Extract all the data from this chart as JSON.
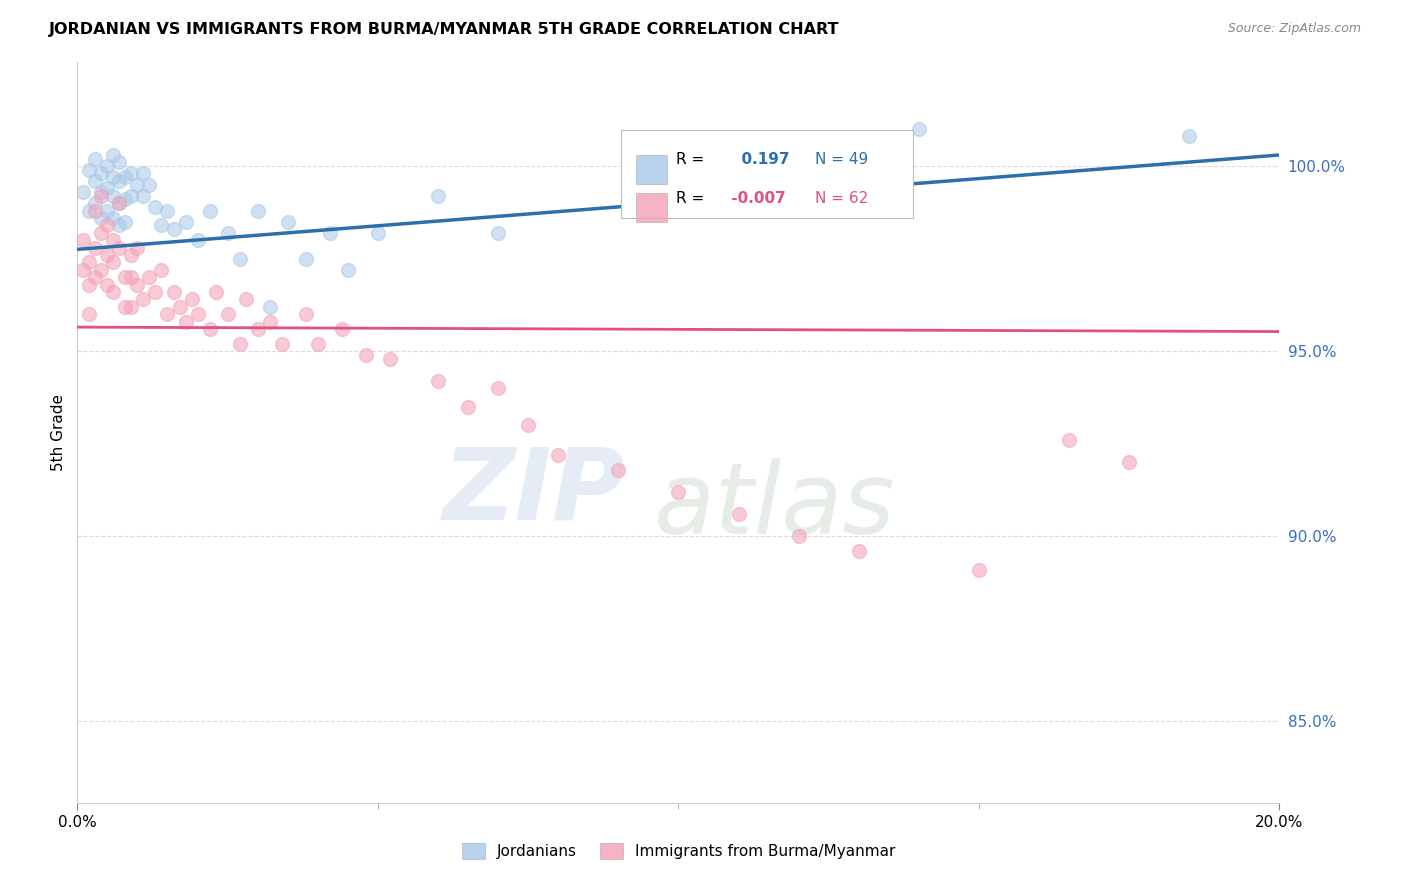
{
  "title": "JORDANIAN VS IMMIGRANTS FROM BURMA/MYANMAR 5TH GRADE CORRELATION CHART",
  "source": "Source: ZipAtlas.com",
  "ylabel": "5th Grade",
  "xlim": [
    0.0,
    0.2
  ],
  "ylim": [
    0.828,
    1.028
  ],
  "ytick_values": [
    0.85,
    0.9,
    0.95,
    1.0
  ],
  "xtick_major": [
    0.0,
    0.2
  ],
  "xtick_minor": [
    0.05,
    0.1,
    0.15
  ],
  "legend_blue_label": "Jordanians",
  "legend_pink_label": "Immigrants from Burma/Myanmar",
  "R_blue": 0.197,
  "N_blue": 49,
  "R_pink": -0.007,
  "N_pink": 62,
  "blue_color": "#a8c8e8",
  "pink_color": "#f4a0b5",
  "trendline_blue_color": "#2c6fac",
  "trendline_pink_color": "#e05080",
  "blue_trendline_x": [
    0.0,
    0.2
  ],
  "blue_trendline_y": [
    0.9775,
    1.003
  ],
  "pink_trendline_x": [
    0.0,
    0.2
  ],
  "pink_trendline_y": [
    0.9565,
    0.9553
  ],
  "blue_scatter_x": [
    0.001,
    0.002,
    0.002,
    0.003,
    0.003,
    0.003,
    0.004,
    0.004,
    0.004,
    0.005,
    0.005,
    0.005,
    0.006,
    0.006,
    0.006,
    0.006,
    0.007,
    0.007,
    0.007,
    0.007,
    0.008,
    0.008,
    0.008,
    0.009,
    0.009,
    0.01,
    0.011,
    0.011,
    0.012,
    0.013,
    0.014,
    0.015,
    0.016,
    0.018,
    0.02,
    0.022,
    0.025,
    0.027,
    0.03,
    0.032,
    0.035,
    0.038,
    0.042,
    0.045,
    0.05,
    0.06,
    0.07,
    0.14,
    0.185
  ],
  "blue_scatter_y": [
    0.993,
    0.999,
    0.988,
    1.002,
    0.996,
    0.99,
    0.998,
    0.993,
    0.986,
    1.0,
    0.994,
    0.988,
    1.003,
    0.997,
    0.992,
    0.986,
    1.001,
    0.996,
    0.99,
    0.984,
    0.997,
    0.991,
    0.985,
    0.998,
    0.992,
    0.995,
    0.998,
    0.992,
    0.995,
    0.989,
    0.984,
    0.988,
    0.983,
    0.985,
    0.98,
    0.988,
    0.982,
    0.975,
    0.988,
    0.962,
    0.985,
    0.975,
    0.982,
    0.972,
    0.982,
    0.992,
    0.982,
    1.01,
    1.008
  ],
  "pink_scatter_x": [
    0.001,
    0.001,
    0.002,
    0.002,
    0.002,
    0.003,
    0.003,
    0.003,
    0.004,
    0.004,
    0.004,
    0.005,
    0.005,
    0.005,
    0.006,
    0.006,
    0.006,
    0.007,
    0.007,
    0.008,
    0.008,
    0.009,
    0.009,
    0.009,
    0.01,
    0.01,
    0.011,
    0.012,
    0.013,
    0.014,
    0.015,
    0.016,
    0.017,
    0.018,
    0.019,
    0.02,
    0.022,
    0.023,
    0.025,
    0.027,
    0.028,
    0.03,
    0.032,
    0.034,
    0.038,
    0.04,
    0.044,
    0.048,
    0.052,
    0.06,
    0.065,
    0.07,
    0.075,
    0.08,
    0.09,
    0.1,
    0.11,
    0.12,
    0.13,
    0.15,
    0.165,
    0.175
  ],
  "pink_scatter_y": [
    0.98,
    0.972,
    0.974,
    0.968,
    0.96,
    0.988,
    0.978,
    0.97,
    0.992,
    0.982,
    0.972,
    0.984,
    0.976,
    0.968,
    0.98,
    0.974,
    0.966,
    0.99,
    0.978,
    0.97,
    0.962,
    0.976,
    0.97,
    0.962,
    0.978,
    0.968,
    0.964,
    0.97,
    0.966,
    0.972,
    0.96,
    0.966,
    0.962,
    0.958,
    0.964,
    0.96,
    0.956,
    0.966,
    0.96,
    0.952,
    0.964,
    0.956,
    0.958,
    0.952,
    0.96,
    0.952,
    0.956,
    0.949,
    0.948,
    0.942,
    0.935,
    0.94,
    0.93,
    0.922,
    0.918,
    0.912,
    0.906,
    0.9,
    0.896,
    0.891,
    0.926,
    0.92
  ],
  "watermark_zip": "ZIP",
  "watermark_atlas": "atlas",
  "background_color": "#ffffff",
  "grid_color": "#dddddd",
  "marker_size": 100,
  "marker_alpha": 0.55
}
